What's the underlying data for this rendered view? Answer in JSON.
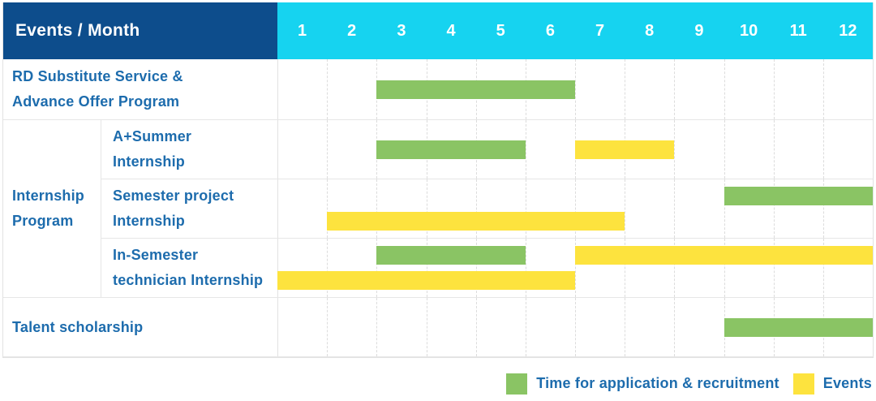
{
  "header": {
    "corner": "Events / Month",
    "months": [
      "1",
      "2",
      "3",
      "4",
      "5",
      "6",
      "7",
      "8",
      "9",
      "10",
      "11",
      "12"
    ]
  },
  "colors": {
    "header_bg": "#0d4d8c",
    "months_bg": "#16d3f0",
    "header_text": "#ffffff",
    "label_text": "#1d6cad",
    "recruitment": "#8ac464",
    "event": "#fde33e",
    "grid_solid": "#e6e6e6",
    "grid_dashed": "#dcdcdc"
  },
  "chart_data": {
    "type": "gantt",
    "title": "Events / Month",
    "xlabel": "Month",
    "x_ticks": [
      "1",
      "2",
      "3",
      "4",
      "5",
      "6",
      "7",
      "8",
      "9",
      "10",
      "11",
      "12"
    ],
    "x_range": [
      1,
      12
    ],
    "grid": "dashed-vertical",
    "legend_position": "bottom-right",
    "legend": [
      {
        "series": "recruitment",
        "label": "Time for application & recruitment"
      },
      {
        "series": "event",
        "label": "Events"
      }
    ],
    "rows": [
      {
        "group": null,
        "label": "RD Substitute Service &\nAdvance Offer Program",
        "lanes": [
          [
            {
              "series": "recruitment",
              "start_month": 3,
              "end_month": 6
            }
          ]
        ]
      },
      {
        "group": "Internship\nProgram",
        "label": "A+Summer\nInternship",
        "lanes": [
          [
            {
              "series": "recruitment",
              "start_month": 3,
              "end_month": 5
            },
            {
              "series": "event",
              "start_month": 7,
              "end_month": 8
            }
          ]
        ]
      },
      {
        "group": "Internship\nProgram",
        "label": "Semester project\nInternship",
        "lanes": [
          [
            {
              "series": "recruitment",
              "start_month": 10,
              "end_month": 12
            }
          ],
          [
            {
              "series": "event",
              "start_month": 2,
              "end_month": 7
            }
          ]
        ]
      },
      {
        "group": "Internship\nProgram",
        "label": "In-Semester\ntechnician Internship",
        "lanes": [
          [
            {
              "series": "recruitment",
              "start_month": 3,
              "end_month": 5
            },
            {
              "series": "event",
              "start_month": 7,
              "end_month": 12
            }
          ],
          [
            {
              "series": "event",
              "start_month": 1,
              "end_month": 6
            }
          ]
        ]
      },
      {
        "group": null,
        "label": "Talent scholarship",
        "lanes": [
          [
            {
              "series": "recruitment",
              "start_month": 10,
              "end_month": 12
            }
          ]
        ]
      }
    ]
  }
}
